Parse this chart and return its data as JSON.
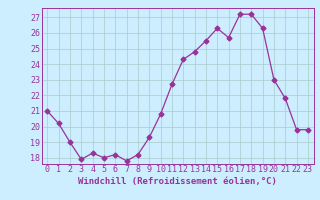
{
  "x": [
    0,
    1,
    2,
    3,
    4,
    5,
    6,
    7,
    8,
    9,
    10,
    11,
    12,
    13,
    14,
    15,
    16,
    17,
    18,
    19,
    20,
    21,
    22,
    23
  ],
  "y": [
    21.0,
    20.2,
    19.0,
    17.9,
    18.3,
    18.0,
    18.2,
    17.8,
    18.2,
    19.3,
    20.8,
    22.7,
    24.3,
    24.8,
    25.5,
    26.3,
    25.7,
    27.2,
    27.2,
    26.3,
    23.0,
    21.8,
    19.8,
    19.8
  ],
  "line_color": "#993399",
  "marker": "D",
  "marker_size": 2.5,
  "bg_color": "#cceeff",
  "grid_color": "#aacccc",
  "xlabel": "Windchill (Refroidissement éolien,°C)",
  "ylabel_ticks": [
    18,
    19,
    20,
    21,
    22,
    23,
    24,
    25,
    26,
    27
  ],
  "xlim": [
    -0.5,
    23.5
  ],
  "ylim": [
    17.6,
    27.6
  ],
  "xlabel_fontsize": 6.5,
  "tick_fontsize": 6.0,
  "font_family": "monospace"
}
